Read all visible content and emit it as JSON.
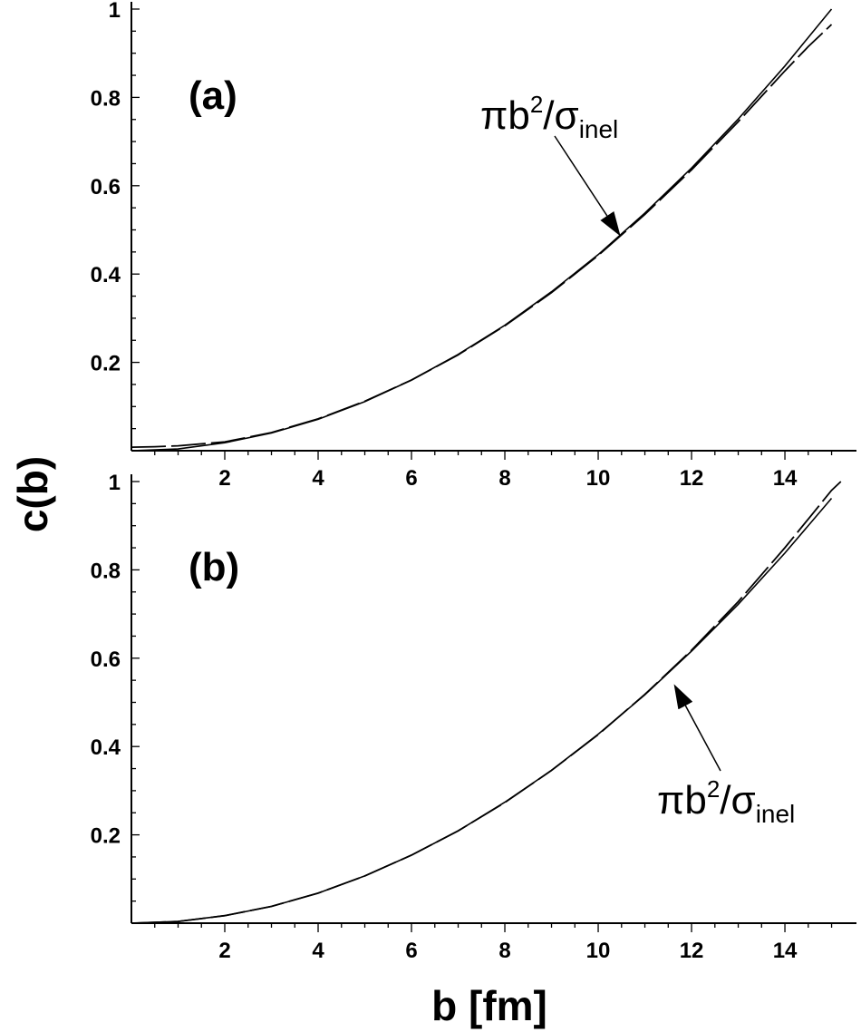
{
  "chart_data": [
    {
      "type": "line",
      "panel_label": "(a)",
      "xlim": [
        0,
        15.3
      ],
      "ylim": [
        0,
        1
      ],
      "x_ticks": [
        "2",
        "4",
        "6",
        "8",
        "10",
        "12",
        "14"
      ],
      "y_ticks": [
        "0.2",
        "0.4",
        "0.6",
        "0.8",
        "1"
      ],
      "annotation": {
        "main": "πb",
        "sup": "2",
        "slash": "/σ",
        "sub": "inel"
      },
      "series": [
        {
          "x": [
            0,
            1,
            2,
            3,
            4,
            5,
            6,
            7,
            8,
            9,
            10,
            11,
            12,
            13,
            14,
            15
          ],
          "y": [
            0,
            0.004,
            0.018,
            0.04,
            0.071,
            0.111,
            0.16,
            0.218,
            0.284,
            0.36,
            0.444,
            0.538,
            0.64,
            0.751,
            0.871,
            1.0
          ]
        },
        {
          "x": [
            0,
            0.5,
            1,
            2,
            3,
            4,
            5,
            6,
            7,
            8,
            9,
            10,
            11,
            12,
            13,
            14,
            14.5,
            15
          ],
          "y": [
            0.008,
            0.009,
            0.011,
            0.02,
            0.041,
            0.072,
            0.112,
            0.16,
            0.217,
            0.283,
            0.358,
            0.442,
            0.535,
            0.636,
            0.745,
            0.86,
            0.915,
            0.965
          ]
        }
      ]
    },
    {
      "type": "line",
      "panel_label": "(b)",
      "xlim": [
        0,
        15.3
      ],
      "ylim": [
        0,
        1
      ],
      "x_ticks": [
        "2",
        "4",
        "6",
        "8",
        "10",
        "12",
        "14"
      ],
      "y_ticks": [
        "0.2",
        "0.4",
        "0.6",
        "0.8",
        "1"
      ],
      "xlabel": "b [fm]",
      "annotation": {
        "main": "πb",
        "sup": "2",
        "slash": "/σ",
        "sub": "inel"
      },
      "series": [
        {
          "x": [
            0,
            1,
            2,
            3,
            4,
            5,
            6,
            7,
            8,
            9,
            10,
            11,
            12,
            13,
            14,
            15
          ],
          "y": [
            0,
            0.004,
            0.017,
            0.038,
            0.068,
            0.107,
            0.154,
            0.209,
            0.274,
            0.346,
            0.428,
            0.517,
            0.616,
            0.722,
            0.838,
            0.962
          ]
        },
        {
          "x": [
            0,
            1,
            2,
            3,
            4,
            5,
            6,
            7,
            8,
            9,
            10,
            11,
            12,
            13,
            14,
            14.5,
            15,
            15.2
          ],
          "y": [
            0,
            0.004,
            0.017,
            0.038,
            0.068,
            0.107,
            0.154,
            0.209,
            0.273,
            0.346,
            0.427,
            0.518,
            0.618,
            0.728,
            0.85,
            0.915,
            0.98,
            1.0
          ]
        }
      ]
    }
  ],
  "shared_ylabel": "c(b)"
}
